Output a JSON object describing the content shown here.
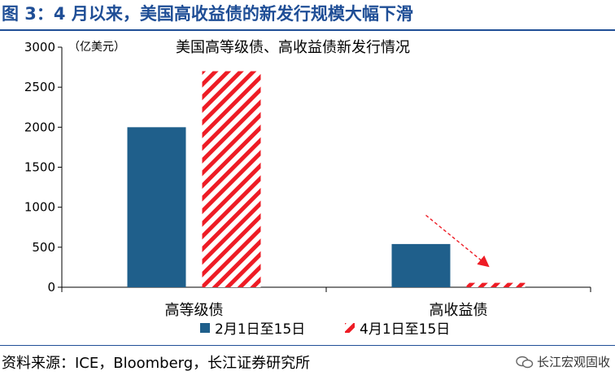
{
  "figure_title": "图 3：4 月以来，美国高收益债的新发行规模大幅下滑",
  "source_text": "资料来源：ICE，Bloomberg，长江证券研究所",
  "watermark_text": "长江宏观固收",
  "colors": {
    "title_blue": "#1f4e96",
    "series1": "#1f5f8b",
    "series2": "#ee1c25"
  },
  "chart_data": {
    "type": "bar",
    "title": "美国高等级债、高收益债新发行情况",
    "unit_label": "（亿美元）",
    "categories": [
      "高等级债",
      "高收益债"
    ],
    "series": [
      {
        "name": "2月1日至15日",
        "values": [
          2000,
          540
        ],
        "pattern": "solid"
      },
      {
        "name": "4月1日至15日",
        "values": [
          2700,
          55
        ],
        "pattern": "hatch"
      }
    ],
    "ylim": [
      0,
      3000
    ],
    "yticks": [
      "0",
      "500",
      "1000",
      "1500",
      "2000",
      "2500",
      "3000"
    ],
    "legend_position": "bottom",
    "annotations": [
      {
        "type": "dashed-arrow",
        "category": "高收益债",
        "color": "#ee1c25"
      }
    ]
  }
}
